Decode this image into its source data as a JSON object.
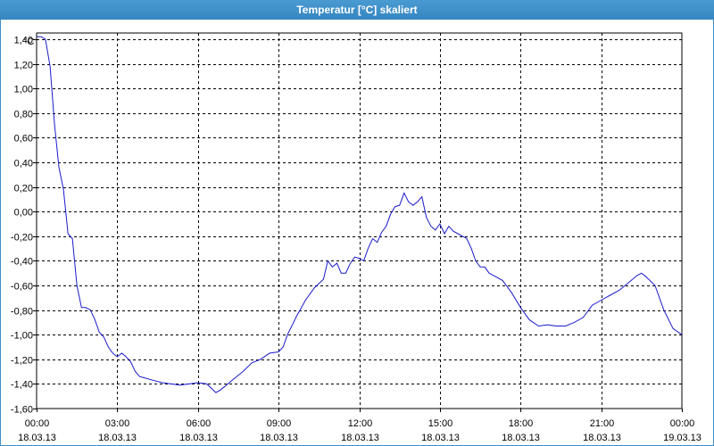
{
  "window": {
    "title": "Temperatur [°C] skaliert"
  },
  "colors": {
    "title_bar": "#3d8fc8",
    "plot_line": "#1a1acc",
    "grid": "#000000",
    "background": "#ffffff"
  },
  "chart_data": {
    "type": "line",
    "title": "Temperatur [°C] skaliert",
    "ylabel": "°C",
    "xlabel": "",
    "ylim": [
      -1.6,
      1.45
    ],
    "xlim_hours": [
      0,
      24
    ],
    "grid": true,
    "y_ticks": [
      {
        "value": 1.4,
        "label": "1,40"
      },
      {
        "value": 1.2,
        "label": "1,20"
      },
      {
        "value": 1.0,
        "label": "1,00"
      },
      {
        "value": 0.8,
        "label": "0,80"
      },
      {
        "value": 0.6,
        "label": "0,60"
      },
      {
        "value": 0.4,
        "label": "0,40"
      },
      {
        "value": 0.2,
        "label": "0,20"
      },
      {
        "value": 0.0,
        "label": "0,00"
      },
      {
        "value": -0.2,
        "label": "-0,20"
      },
      {
        "value": -0.4,
        "label": "-0,40"
      },
      {
        "value": -0.6,
        "label": "-0,60"
      },
      {
        "value": -0.8,
        "label": "-0,80"
      },
      {
        "value": -1.0,
        "label": "-1,00"
      },
      {
        "value": -1.2,
        "label": "-1,20"
      },
      {
        "value": -1.4,
        "label": "-1,40"
      },
      {
        "value": -1.6,
        "label": "-1,60"
      }
    ],
    "x_ticks": [
      {
        "hour": 0,
        "time": "00:00",
        "date": "18.03.13"
      },
      {
        "hour": 3,
        "time": "03:00",
        "date": "18.03.13"
      },
      {
        "hour": 6,
        "time": "06:00",
        "date": "18.03.13"
      },
      {
        "hour": 9,
        "time": "09:00",
        "date": "18.03.13"
      },
      {
        "hour": 12,
        "time": "12:00",
        "date": "18.03.13"
      },
      {
        "hour": 15,
        "time": "15:00",
        "date": "18.03.13"
      },
      {
        "hour": 18,
        "time": "18:00",
        "date": "18.03.13"
      },
      {
        "hour": 21,
        "time": "21:00",
        "date": "18.03.13"
      },
      {
        "hour": 24,
        "time": "00:00",
        "date": "19.03.13"
      }
    ],
    "series": [
      {
        "points": [
          [
            0.0,
            1.42
          ],
          [
            0.17,
            1.42
          ],
          [
            0.33,
            1.4
          ],
          [
            0.5,
            1.18
          ],
          [
            0.67,
            0.7
          ],
          [
            0.83,
            0.36
          ],
          [
            1.0,
            0.18
          ],
          [
            1.17,
            -0.18
          ],
          [
            1.33,
            -0.22
          ],
          [
            1.5,
            -0.6
          ],
          [
            1.67,
            -0.78
          ],
          [
            1.83,
            -0.78
          ],
          [
            2.0,
            -0.8
          ],
          [
            2.17,
            -0.88
          ],
          [
            2.33,
            -0.98
          ],
          [
            2.5,
            -1.02
          ],
          [
            2.67,
            -1.1
          ],
          [
            2.83,
            -1.15
          ],
          [
            3.0,
            -1.18
          ],
          [
            3.17,
            -1.15
          ],
          [
            3.33,
            -1.18
          ],
          [
            3.5,
            -1.22
          ],
          [
            3.67,
            -1.3
          ],
          [
            3.83,
            -1.34
          ],
          [
            4.0,
            -1.35
          ],
          [
            4.33,
            -1.37
          ],
          [
            4.67,
            -1.39
          ],
          [
            5.0,
            -1.4
          ],
          [
            5.33,
            -1.41
          ],
          [
            5.67,
            -1.4
          ],
          [
            6.0,
            -1.39
          ],
          [
            6.33,
            -1.4
          ],
          [
            6.67,
            -1.47
          ],
          [
            6.83,
            -1.45
          ],
          [
            7.0,
            -1.42
          ],
          [
            7.33,
            -1.36
          ],
          [
            7.67,
            -1.3
          ],
          [
            8.0,
            -1.23
          ],
          [
            8.33,
            -1.2
          ],
          [
            8.67,
            -1.15
          ],
          [
            9.0,
            -1.14
          ],
          [
            9.17,
            -1.1
          ],
          [
            9.33,
            -1.0
          ],
          [
            9.67,
            -0.85
          ],
          [
            10.0,
            -0.72
          ],
          [
            10.33,
            -0.62
          ],
          [
            10.67,
            -0.55
          ],
          [
            10.83,
            -0.4
          ],
          [
            11.0,
            -0.45
          ],
          [
            11.17,
            -0.42
          ],
          [
            11.33,
            -0.5
          ],
          [
            11.5,
            -0.5
          ],
          [
            11.67,
            -0.42
          ],
          [
            11.83,
            -0.37
          ],
          [
            12.0,
            -0.38
          ],
          [
            12.17,
            -0.4
          ],
          [
            12.33,
            -0.3
          ],
          [
            12.5,
            -0.22
          ],
          [
            12.67,
            -0.25
          ],
          [
            12.83,
            -0.17
          ],
          [
            13.0,
            -0.12
          ],
          [
            13.17,
            -0.02
          ],
          [
            13.33,
            0.04
          ],
          [
            13.5,
            0.05
          ],
          [
            13.67,
            0.15
          ],
          [
            13.83,
            0.08
          ],
          [
            14.0,
            0.05
          ],
          [
            14.17,
            0.08
          ],
          [
            14.33,
            0.12
          ],
          [
            14.5,
            -0.05
          ],
          [
            14.67,
            -0.12
          ],
          [
            14.83,
            -0.15
          ],
          [
            15.0,
            -0.1
          ],
          [
            15.17,
            -0.18
          ],
          [
            15.33,
            -0.12
          ],
          [
            15.5,
            -0.16
          ],
          [
            15.67,
            -0.18
          ],
          [
            16.0,
            -0.22
          ],
          [
            16.17,
            -0.3
          ],
          [
            16.33,
            -0.4
          ],
          [
            16.5,
            -0.45
          ],
          [
            16.67,
            -0.45
          ],
          [
            16.83,
            -0.5
          ],
          [
            17.0,
            -0.52
          ],
          [
            17.33,
            -0.56
          ],
          [
            17.67,
            -0.66
          ],
          [
            18.0,
            -0.78
          ],
          [
            18.33,
            -0.88
          ],
          [
            18.67,
            -0.93
          ],
          [
            19.0,
            -0.92
          ],
          [
            19.33,
            -0.93
          ],
          [
            19.67,
            -0.93
          ],
          [
            20.0,
            -0.9
          ],
          [
            20.33,
            -0.86
          ],
          [
            20.67,
            -0.76
          ],
          [
            21.0,
            -0.72
          ],
          [
            21.33,
            -0.68
          ],
          [
            21.67,
            -0.64
          ],
          [
            22.0,
            -0.58
          ],
          [
            22.33,
            -0.52
          ],
          [
            22.5,
            -0.5
          ],
          [
            22.67,
            -0.53
          ],
          [
            23.0,
            -0.6
          ],
          [
            23.33,
            -0.8
          ],
          [
            23.67,
            -0.95
          ],
          [
            24.0,
            -1.0
          ]
        ]
      }
    ]
  }
}
